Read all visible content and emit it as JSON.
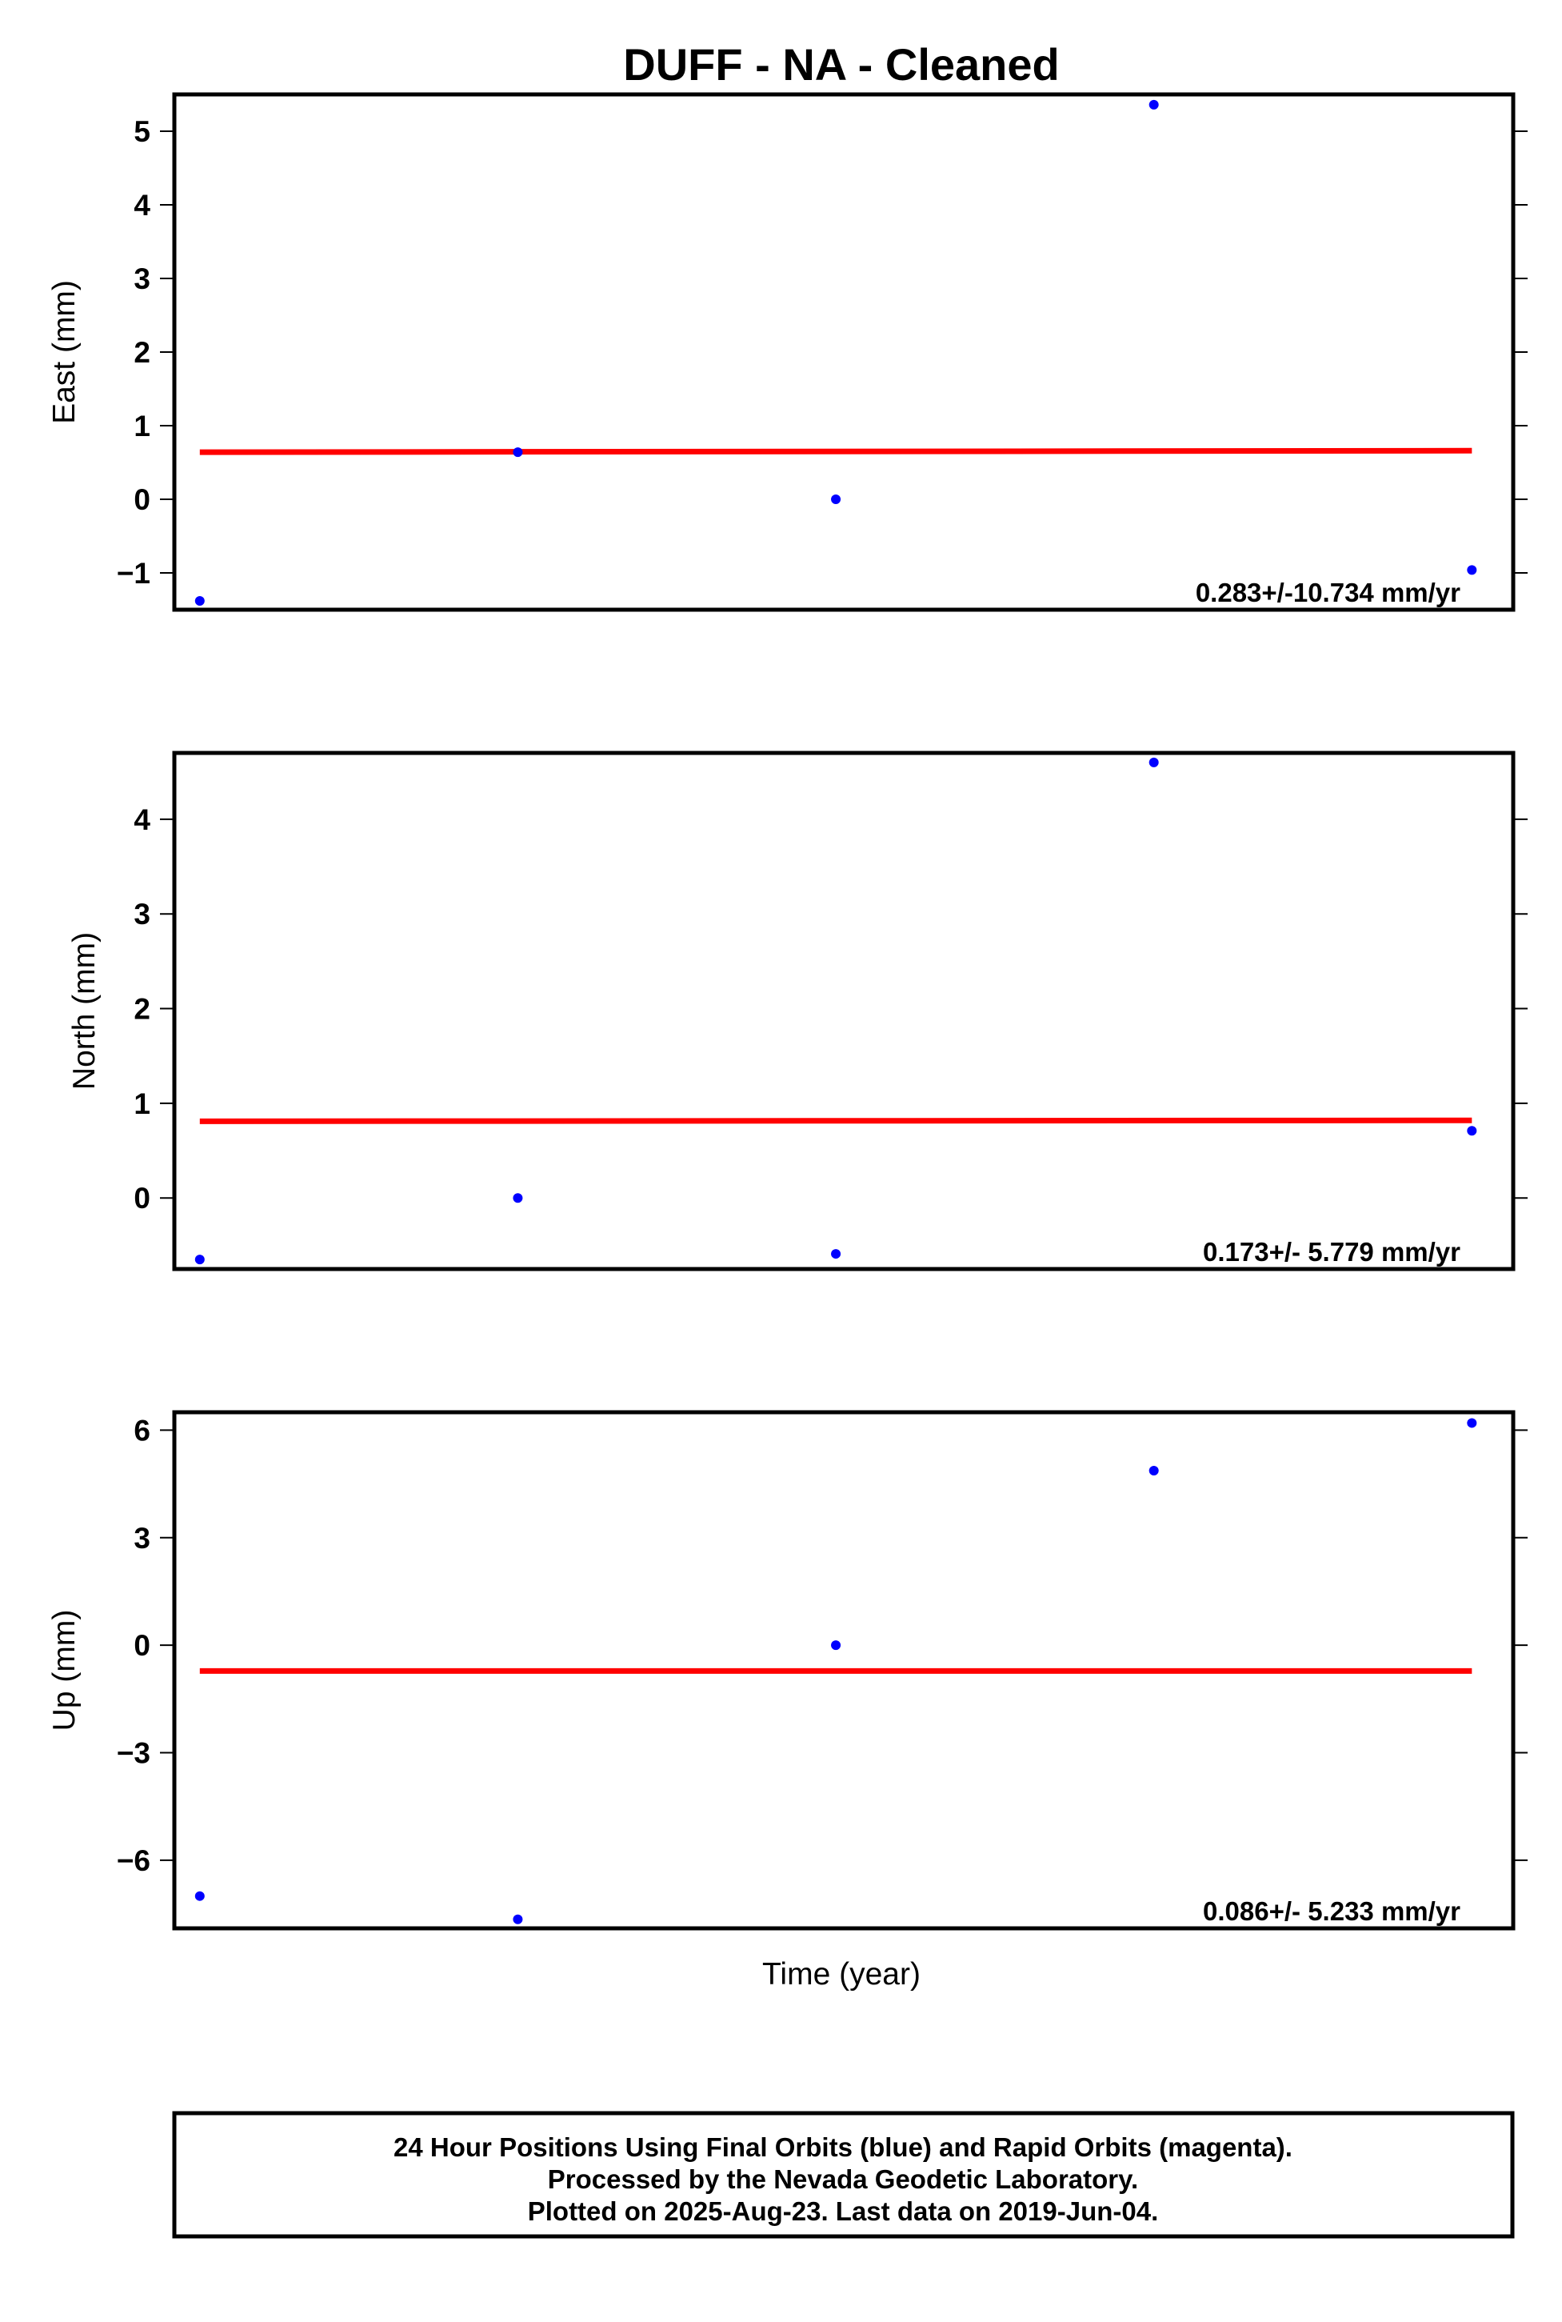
{
  "chart_data": {
    "title": "DUFF  - NA - Cleaned",
    "xlabel": "Time (year)",
    "colors": {
      "final_orbits": "#0000ff",
      "fit_line": "#ff0000",
      "frame": "#000000"
    },
    "x": [
      0,
      1,
      2,
      3,
      4
    ],
    "xlim": [
      -0.08,
      4.13
    ],
    "panels": [
      {
        "type": "scatter",
        "ylabel": "East (mm)",
        "ylim": [
          -1.5,
          5.5
        ],
        "yticks": [
          -1,
          0,
          1,
          2,
          3,
          4,
          5
        ],
        "yticklabels": [
          "−1",
          "0",
          "1",
          "2",
          "3",
          "4",
          "5"
        ],
        "series": [
          {
            "values": [
              -1.38,
              0.64,
              0.0,
              5.36,
              -0.96
            ]
          }
        ],
        "trend": {
          "x": [
            0,
            4
          ],
          "y": [
            0.64,
            0.66
          ]
        },
        "rate_label": "0.283+/-10.734 mm/yr"
      },
      {
        "type": "scatter",
        "ylabel": "North (mm)",
        "ylim": [
          -0.75,
          4.7
        ],
        "yticks": [
          0,
          1,
          2,
          3,
          4
        ],
        "yticklabels": [
          "0",
          "1",
          "2",
          "3",
          "4"
        ],
        "series": [
          {
            "values": [
              -0.65,
              0.0,
              -0.59,
              4.6,
              0.71
            ]
          }
        ],
        "trend": {
          "x": [
            0,
            4
          ],
          "y": [
            0.81,
            0.82
          ]
        },
        "rate_label": "0.173+/- 5.779 mm/yr"
      },
      {
        "type": "scatter",
        "ylabel": "Up (mm)",
        "ylim": [
          -7.9,
          6.5
        ],
        "yticks": [
          -6,
          -3,
          0,
          3,
          6
        ],
        "yticklabels": [
          "−6",
          "−3",
          "0",
          "3",
          "6"
        ],
        "series": [
          {
            "values": [
              -7.0,
              -7.65,
              0.0,
              4.87,
              6.2
            ]
          }
        ],
        "trend": {
          "x": [
            0,
            4
          ],
          "y": [
            -0.72,
            -0.72
          ]
        },
        "rate_label": "0.086+/- 5.233 mm/yr"
      }
    ]
  },
  "footer": {
    "lines": [
      "24 Hour Positions Using Final Orbits (blue) and Rapid Orbits (magenta).",
      "Processed by the Nevada Geodetic Laboratory.",
      "Plotted on 2025-Aug-23. Last data on 2019-Jun-04."
    ]
  }
}
